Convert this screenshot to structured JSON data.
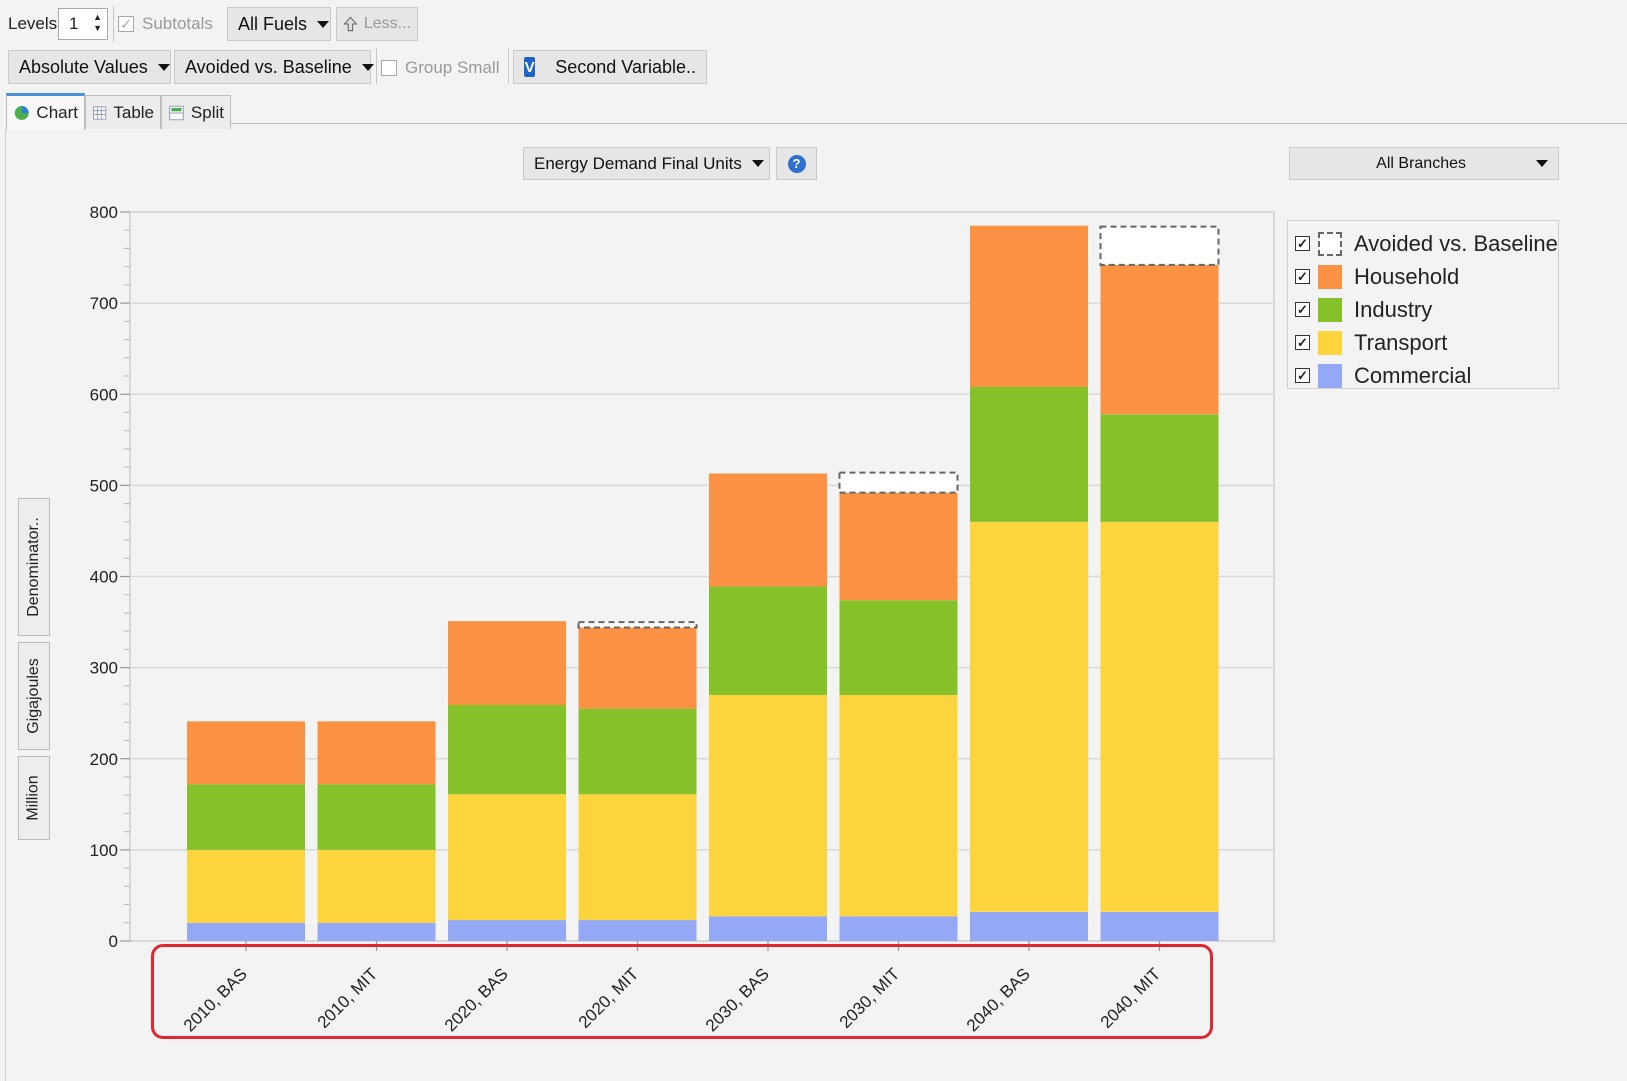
{
  "toolbar": {
    "levels_label": "Levels:",
    "levels_value": "1",
    "subtotals_label": "Subtotals",
    "fuels_label": "All Fuels",
    "less_label": "Less...",
    "values_label": "Absolute Values",
    "compare_label": "Avoided vs. Baseline",
    "group_small_label": "Group Small",
    "second_variable_label": "Second Variable.."
  },
  "tabs": [
    {
      "label": "Chart",
      "icon": "pie-chart-icon",
      "active": true
    },
    {
      "label": "Table",
      "icon": "table-grid-icon",
      "active": false
    },
    {
      "label": "Split",
      "icon": "split-view-icon",
      "active": false
    }
  ],
  "units_dropdown": "Energy Demand Final Units",
  "branches_dropdown": "All Branches",
  "side_buttons": {
    "denominator": "Denominator..",
    "unit": "Gigajoules",
    "scale": "Million"
  },
  "colors": {
    "Commercial": "#94a8f5",
    "Transport": "#fcd53e",
    "Industry": "#86c12a",
    "Household": "#fa9143",
    "highlight": "#e0262e"
  },
  "chart_data": {
    "type": "bar",
    "stacked": true,
    "categories": [
      "2010, BAS",
      "2010, MIT",
      "2020, BAS",
      "2020, MIT",
      "2030, BAS",
      "2030, MIT",
      "2040, BAS",
      "2040, MIT"
    ],
    "series": [
      {
        "name": "Commercial",
        "values": [
          20,
          20,
          23,
          23,
          27,
          27,
          32,
          32
        ]
      },
      {
        "name": "Transport",
        "values": [
          80,
          80,
          138,
          138,
          243,
          243,
          428,
          428
        ]
      },
      {
        "name": "Industry",
        "values": [
          72,
          72,
          98,
          94,
          119,
          104,
          148,
          118
        ]
      },
      {
        "name": "Household",
        "values": [
          69,
          69,
          92,
          89,
          124,
          118,
          177,
          164
        ]
      },
      {
        "name": "Avoided vs. Baseline",
        "values": [
          0,
          0,
          0,
          6,
          0,
          22,
          0,
          42
        ],
        "style": "dashed-outline"
      }
    ],
    "ylim": [
      0,
      800
    ],
    "yticks": [
      0,
      100,
      200,
      300,
      400,
      500,
      600,
      700,
      800
    ],
    "grid": true,
    "legend_position": "right"
  }
}
